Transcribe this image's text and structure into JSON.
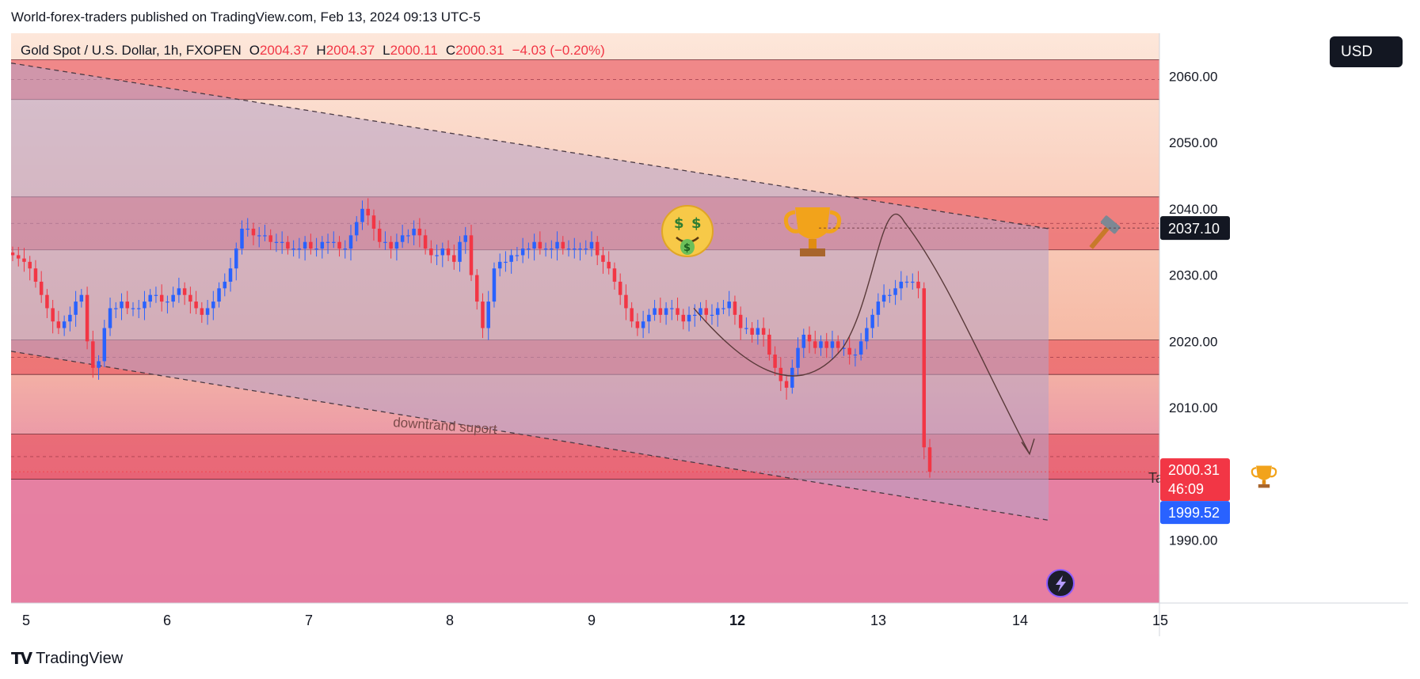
{
  "header": {
    "publisher": "World-forex-traders published on TradingView.com, Feb 13, 2024 09:13 UTC-5"
  },
  "legend": {
    "symbol": "Gold Spot / U.S. Dollar, 1h, FXOPEN",
    "open_label": "O",
    "open": "2004.37",
    "high_label": "H",
    "high": "2004.37",
    "low_label": "L",
    "low": "2000.11",
    "close_label": "C",
    "close": "2000.31",
    "change": "−4.03 (−0.20%)"
  },
  "currency": "USD",
  "brand": "TradingView",
  "colors": {
    "up_candle": "#2962ff",
    "down_candle": "#f23645",
    "zone": "#e8505b",
    "channel": "#9c7fa8",
    "price_badge": "#f23645",
    "bid_badge": "#2962ff",
    "level_badge": "#131722"
  },
  "icons": [
    "money-face-icon",
    "trophy-icon",
    "hammer-icon",
    "lightning-icon",
    "tradingview-logo-icon"
  ],
  "chart_data": {
    "type": "candlestick",
    "y_ticks": [
      "2060.00",
      "2050.00",
      "2040.00",
      "2030.00",
      "2020.00",
      "2010.00",
      "1990.00"
    ],
    "x_ticks": [
      "5",
      "6",
      "7",
      "8",
      "9",
      "12",
      "13",
      "14",
      "15"
    ],
    "ylim": [
      1980.5,
      2066.5
    ],
    "badges": {
      "level": "2037.10",
      "last_price": "2000.31",
      "countdown": "46:09",
      "bid": "1999.52"
    },
    "annotations": {
      "support_label": "downtrand suport",
      "target_label": "Target"
    },
    "zones": [
      {
        "from": 2056.5,
        "to": 2062.5
      },
      {
        "from": 2033.8,
        "to": 2041.8
      },
      {
        "from": 2015.0,
        "to": 2020.2
      },
      {
        "from": 1999.2,
        "to": 2006.0
      }
    ],
    "closes": [
      2033,
      2032.5,
      2032,
      2031,
      2029,
      2027,
      2025,
      2023,
      2022,
      2023,
      2024,
      2026,
      2027,
      2020,
      2016,
      2017,
      2022,
      2025,
      2025,
      2026,
      2025,
      2025,
      2025,
      2026,
      2027,
      2027,
      2026,
      2026,
      2027,
      2028,
      2027,
      2026,
      2025,
      2024,
      2025,
      2026,
      2028,
      2029,
      2031,
      2034,
      2037,
      2037,
      2036,
      2036,
      2036,
      2035,
      2035,
      2035,
      2034,
      2034,
      2034,
      2035,
      2034,
      2034,
      2035,
      2035,
      2035,
      2034,
      2034,
      2036,
      2038,
      2040,
      2039,
      2037,
      2035,
      2035,
      2034,
      2035,
      2036,
      2036,
      2037,
      2036,
      2034,
      2033,
      2033,
      2034,
      2033,
      2032,
      2035,
      2036,
      2030,
      2026,
      2022,
      2026,
      2031,
      2032,
      2032,
      2033,
      2033,
      2034,
      2034,
      2035,
      2034,
      2034,
      2034,
      2035,
      2034,
      2034,
      2034,
      2034,
      2034,
      2035,
      2033,
      2032,
      2031,
      2029,
      2027,
      2025,
      2023,
      2022,
      2023,
      2024,
      2025,
      2024,
      2025,
      2025,
      2024,
      2023,
      2024,
      2024,
      2025,
      2024,
      2024,
      2025,
      2025,
      2026,
      2024,
      2022,
      2022,
      2021,
      2022,
      2021,
      2018,
      2016,
      2014,
      2013,
      2016,
      2019,
      2021,
      2020,
      2019,
      2020,
      2019,
      2020,
      2019,
      2019,
      2018,
      2018,
      2020,
      2022,
      2024,
      2026,
      2027,
      2027,
      2028,
      2029,
      2029,
      2029,
      2028,
      2004,
      2000.31
    ]
  }
}
